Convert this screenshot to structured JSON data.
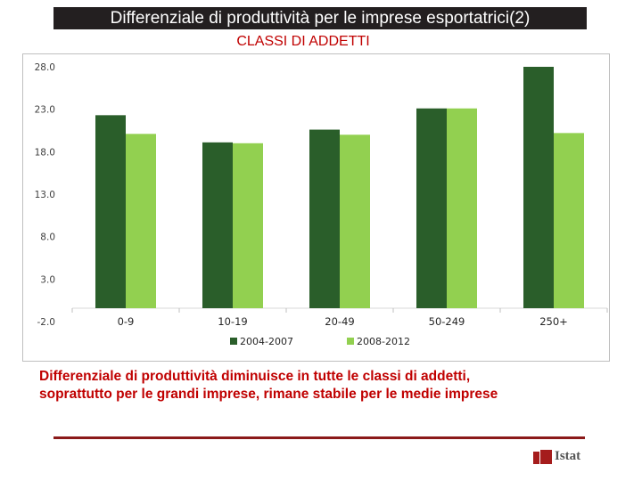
{
  "header": {
    "title": "Differenziale di produttività per le imprese esportatrici(2)",
    "subtitle": "CLASSI DI ADDETTI"
  },
  "comment": {
    "line1": "Differenziale di produttività diminuisce in tutte le classi di addetti,",
    "line2": "soprattutto per le grandi imprese, rimane stabile per le medie imprese"
  },
  "logo": {
    "text": "Istat"
  },
  "chart_data": {
    "type": "bar",
    "title": "",
    "xlabel": "",
    "ylabel": "",
    "categories": [
      "0-9",
      "10-19",
      "20-49",
      "50-249",
      "250+"
    ],
    "series": [
      {
        "name": "2004-2007",
        "color": "#2a5e2a",
        "values": [
          22.3,
          19.1,
          20.6,
          23.1,
          28.0
        ]
      },
      {
        "name": "2008-2012",
        "color": "#92d050",
        "values": [
          20.1,
          19.0,
          20.0,
          23.1,
          20.2
        ]
      }
    ],
    "yticks": [
      "28.0",
      "23.0",
      "18.0",
      "13.0",
      "8.0",
      "3.0",
      "-2.0"
    ],
    "ylim": [
      -2,
      28
    ],
    "grid": false,
    "legend_position": "bottom"
  }
}
